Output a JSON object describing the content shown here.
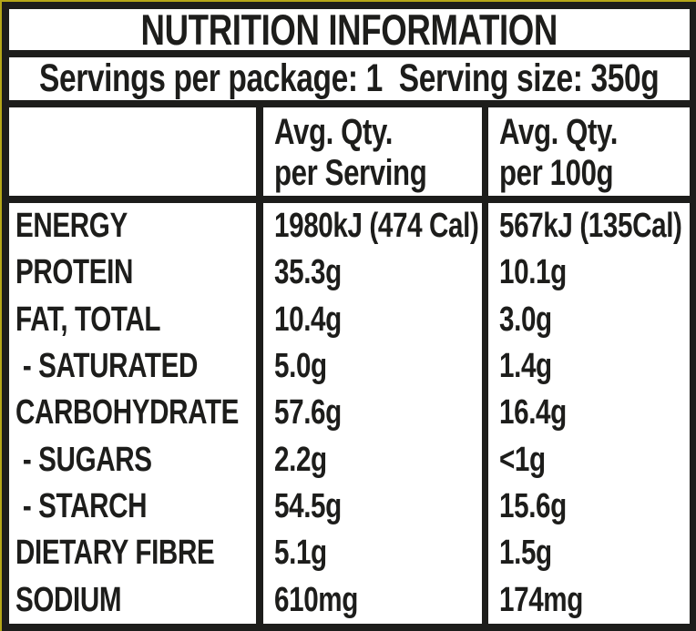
{
  "label": {
    "title": "NUTRITION INFORMATION",
    "servings_line": "Servings per package: 1  Serving size: 350g",
    "servings_per_package": "1",
    "serving_size": "350g",
    "columns": {
      "per_serving": {
        "line1": "Avg. Qty.",
        "line2": "per Serving"
      },
      "per_100g": {
        "line1": "Avg. Qty.",
        "line2": "per 100g"
      }
    },
    "rows": [
      {
        "nutrient": "ENERGY",
        "per_serving": "1980kJ (474 Cal)",
        "per_100g": "567kJ (135Cal)"
      },
      {
        "nutrient": "PROTEIN",
        "per_serving": "35.3g",
        "per_100g": "10.1g"
      },
      {
        "nutrient": "FAT, TOTAL",
        "per_serving": "10.4g",
        "per_100g": "3.0g"
      },
      {
        "nutrient": " - SATURATED",
        "per_serving": "5.0g",
        "per_100g": "1.4g"
      },
      {
        "nutrient": "CARBOHYDRATE",
        "per_serving": "57.6g",
        "per_100g": "16.4g"
      },
      {
        "nutrient": " - SUGARS",
        "per_serving": "2.2g",
        "per_100g": "<1g"
      },
      {
        "nutrient": " - STARCH",
        "per_serving": "54.5g",
        "per_100g": "15.6g"
      },
      {
        "nutrient": "DIETARY FIBRE",
        "per_serving": "5.1g",
        "per_100g": "1.5g"
      },
      {
        "nutrient": "SODIUM",
        "per_serving": "610mg",
        "per_100g": "174mg"
      }
    ],
    "colors": {
      "edge": "#b5a718",
      "border": "#1d1d1b",
      "text": "#1d1d1b",
      "background": "#ffffff"
    }
  }
}
